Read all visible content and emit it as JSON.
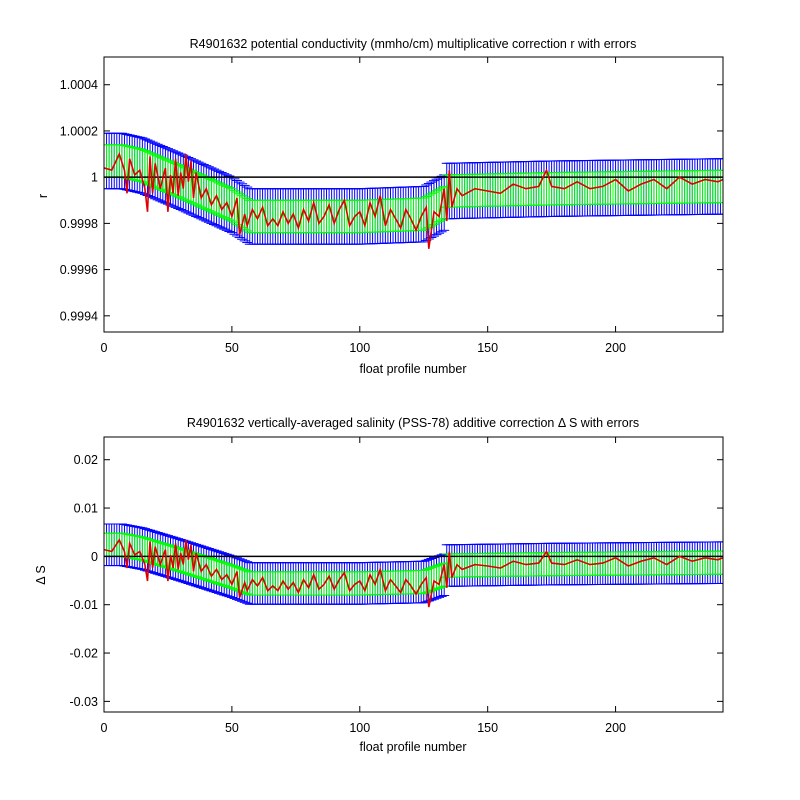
{
  "figure": {
    "background": "#ffffff"
  },
  "colors": {
    "outer_errorbar": "#0000ff",
    "inner_errorbar": "#00ff00",
    "estimate_line": "#e00000",
    "reference_line": "#000000"
  },
  "chart_data": [
    {
      "type": "line",
      "title": "R4901632 potential conductivity (mmho/cm) multiplicative correction r with errors",
      "xlabel": "float profile number",
      "ylabel": "r",
      "xlim": [
        0,
        242
      ],
      "ylim": [
        0.99933,
        1.00052
      ],
      "x_ticks": [
        0,
        50,
        100,
        150,
        200
      ],
      "x_tick_labels": [
        "0",
        "50",
        "100",
        "150",
        "200"
      ],
      "y_ticks": [
        0.9994,
        0.9996,
        0.9998,
        1.0,
        1.0002,
        1.0004
      ],
      "y_tick_labels": [
        "0.9994",
        "0.9996",
        "0.9998",
        "1",
        "1.0002",
        "1.0004"
      ],
      "grid": false,
      "reference_value": 1.0,
      "fit_segments": [
        {
          "x": [
            0,
            7,
            15,
            30,
            50,
            57,
            100,
            125,
            133
          ],
          "y": [
            1.00007,
            1.00007,
            1.00005,
            0.99998,
            0.99988,
            0.99983,
            0.99983,
            0.99984,
            0.99989
          ]
        },
        {
          "x": [
            134,
            175,
            242
          ],
          "y": [
            0.99994,
            0.99995,
            0.99996
          ]
        }
      ],
      "inner_error_halfwidth": 7e-05,
      "outer_error_halfwidth": 0.00012,
      "estimate_series": {
        "name": "",
        "x": [
          0,
          3,
          6,
          8,
          9,
          10,
          12,
          14,
          16,
          17,
          18,
          19,
          20,
          22,
          24,
          25,
          26,
          27,
          28,
          29,
          30,
          31,
          32,
          33,
          34,
          35,
          36,
          38,
          40,
          42,
          44,
          46,
          48,
          50,
          52,
          53,
          55,
          56,
          58,
          60,
          62,
          64,
          66,
          68,
          70,
          72,
          74,
          76,
          78,
          80,
          82,
          84,
          86,
          88,
          90,
          92,
          94,
          96,
          98,
          100,
          102,
          104,
          106,
          108,
          110,
          112,
          114,
          116,
          118,
          120,
          122,
          124,
          126,
          127,
          129,
          131,
          133,
          134,
          135,
          136,
          138,
          140,
          145,
          150,
          155,
          160,
          165,
          170,
          173,
          175,
          180,
          185,
          190,
          195,
          200,
          205,
          210,
          215,
          220,
          225,
          230,
          235,
          240,
          242
        ],
        "y": [
          1.00004,
          1.00003,
          1.0001,
          1.00003,
          0.99993,
          1.00008,
          1.00001,
          1.00003,
          0.99995,
          0.99985,
          1.00009,
          0.99993,
          1.00006,
          0.99995,
          1.00004,
          0.99985,
          1.00001,
          0.99993,
          1.00008,
          0.99992,
          1.00002,
          0.99995,
          1.0001,
          0.99998,
          1.00007,
          0.99991,
          1.00002,
          0.99991,
          0.99995,
          0.99988,
          0.99992,
          0.99986,
          0.99989,
          0.99983,
          0.99991,
          0.99975,
          0.99984,
          0.99979,
          0.99986,
          0.99982,
          0.99987,
          0.99979,
          0.99982,
          0.99979,
          0.99985,
          0.9998,
          0.99984,
          0.99978,
          0.99986,
          0.99981,
          0.99989,
          0.9998,
          0.99983,
          0.99988,
          0.9998,
          0.99986,
          0.9999,
          0.99979,
          0.99983,
          0.99985,
          0.99979,
          0.99989,
          0.99983,
          0.99992,
          0.99979,
          0.99986,
          0.99982,
          0.99978,
          0.99986,
          0.99982,
          0.99977,
          0.99983,
          0.99987,
          0.99969,
          0.99985,
          0.99983,
          0.99995,
          0.99981,
          1.00003,
          0.99987,
          0.99995,
          0.99992,
          0.99995,
          0.99994,
          0.99993,
          0.99997,
          0.99995,
          0.99996,
          1.00003,
          0.99996,
          0.99995,
          0.99998,
          0.99995,
          0.99996,
          0.99999,
          0.99994,
          0.99997,
          0.99999,
          0.99995,
          1.0,
          0.99997,
          0.99999,
          0.99998,
          0.99999
        ]
      }
    },
    {
      "type": "line",
      "title": "R4901632 vertically-averaged salinity (PSS-78) additive correction Δ S with errors",
      "xlabel": "float profile number",
      "ylabel": "Δ S",
      "xlim": [
        0,
        242
      ],
      "ylim": [
        -0.0322,
        0.0247
      ],
      "x_ticks": [
        0,
        50,
        100,
        150,
        200
      ],
      "x_tick_labels": [
        "0",
        "50",
        "100",
        "150",
        "200"
      ],
      "y_ticks": [
        -0.03,
        -0.02,
        -0.01,
        0,
        0.01,
        0.02
      ],
      "y_tick_labels": [
        "-0.03",
        "-0.02",
        "-0.01",
        "0",
        "0.01",
        "0.02"
      ],
      "grid": false,
      "reference_value": 0,
      "fit_segments": [
        {
          "x": [
            0,
            7,
            15,
            30,
            50,
            57,
            100,
            125,
            133
          ],
          "y": [
            0.0024,
            0.0024,
            0.0016,
            -0.0008,
            -0.0042,
            -0.0056,
            -0.0056,
            -0.0053,
            -0.0038
          ]
        },
        {
          "x": [
            134,
            175,
            242
          ],
          "y": [
            -0.0019,
            -0.0016,
            -0.0013
          ]
        }
      ],
      "inner_error_halfwidth": 0.0024,
      "outer_error_halfwidth": 0.0043,
      "estimate_series": {
        "name": "",
        "x": [
          0,
          3,
          6,
          8,
          9,
          10,
          12,
          14,
          16,
          17,
          18,
          19,
          20,
          22,
          24,
          25,
          26,
          27,
          28,
          29,
          30,
          31,
          32,
          33,
          34,
          35,
          36,
          38,
          40,
          42,
          44,
          46,
          48,
          50,
          52,
          53,
          55,
          56,
          58,
          60,
          62,
          64,
          66,
          68,
          70,
          72,
          74,
          76,
          78,
          80,
          82,
          84,
          86,
          88,
          90,
          92,
          94,
          96,
          98,
          100,
          102,
          104,
          106,
          108,
          110,
          112,
          114,
          116,
          118,
          120,
          122,
          124,
          126,
          127,
          129,
          131,
          133,
          134,
          135,
          136,
          138,
          140,
          145,
          150,
          155,
          160,
          165,
          170,
          173,
          175,
          180,
          185,
          190,
          195,
          200,
          205,
          210,
          215,
          220,
          225,
          230,
          235,
          240,
          242
        ],
        "y": [
          0.0014,
          0.001,
          0.0034,
          0.001,
          -0.0024,
          0.0027,
          0.0003,
          0.001,
          -0.0017,
          -0.0051,
          0.0031,
          -0.0024,
          0.002,
          -0.0017,
          0.0014,
          -0.0051,
          0.0003,
          -0.0024,
          0.0027,
          -0.0027,
          0.0007,
          -0.0017,
          0.0034,
          -0.0007,
          0.0024,
          -0.0031,
          0.0007,
          -0.0031,
          -0.0017,
          -0.0041,
          -0.0027,
          -0.0048,
          -0.0038,
          -0.0058,
          -0.0031,
          -0.0085,
          -0.0054,
          -0.0071,
          -0.0048,
          -0.0061,
          -0.0044,
          -0.0071,
          -0.0061,
          -0.0071,
          -0.0051,
          -0.0068,
          -0.0054,
          -0.0075,
          -0.0048,
          -0.0065,
          -0.0038,
          -0.0068,
          -0.0058,
          -0.0041,
          -0.0068,
          -0.0048,
          -0.0034,
          -0.0071,
          -0.0058,
          -0.0051,
          -0.0071,
          -0.0038,
          -0.0058,
          -0.0027,
          -0.0071,
          -0.0048,
          -0.0061,
          -0.0075,
          -0.0048,
          -0.0061,
          -0.0078,
          -0.0058,
          -0.0044,
          -0.0105,
          -0.0051,
          -0.0058,
          -0.0017,
          -0.0065,
          0.001,
          -0.0044,
          -0.0017,
          -0.0027,
          -0.0017,
          -0.002,
          -0.0024,
          -0.001,
          -0.0017,
          -0.0014,
          0.001,
          -0.0014,
          -0.0017,
          -0.0007,
          -0.0017,
          -0.0014,
          -0.0003,
          -0.002,
          -0.001,
          -0.0003,
          -0.0017,
          0.0,
          -0.001,
          -0.0003,
          -0.0007,
          -0.0003
        ]
      }
    }
  ]
}
